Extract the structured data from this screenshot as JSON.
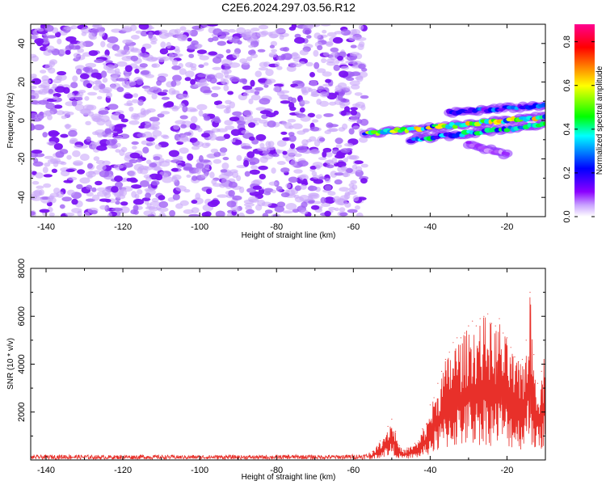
{
  "title": "C2E6.2024.297.03.56.R12",
  "chart_data": [
    {
      "type": "heatmap",
      "xlabel": "Height of straight line (km)",
      "ylabel": "Frequency (Hz)",
      "xlim": [
        -144,
        -10
      ],
      "ylim": [
        -50,
        50
      ],
      "x_ticks": [
        -140,
        -120,
        -100,
        -80,
        -60,
        -40,
        -20
      ],
      "y_ticks": [
        -40,
        -20,
        0,
        20,
        40
      ],
      "x_tick_labels": [
        "-140",
        "-120",
        "-100",
        "-80",
        "-60",
        "-40",
        "-20"
      ],
      "y_tick_labels": [
        "-40",
        "-20",
        "0",
        "20",
        "40"
      ],
      "colorbar": {
        "label": "Normalized spectral amplitude",
        "range": [
          0.0,
          0.88
        ],
        "ticks": [
          0.0,
          0.2,
          0.4,
          0.6,
          0.8
        ],
        "tick_labels": [
          "0.0",
          "0.2",
          "0.4",
          "0.6",
          "0.8"
        ],
        "colormap": [
          "#ffffff",
          "#8b00ff",
          "#0000ff",
          "#00ffff",
          "#00ff00",
          "#ffff00",
          "#ff8000",
          "#ff0000",
          "#ff00a0"
        ]
      },
      "background_region": {
        "x_range": [
          -144,
          -57
        ],
        "y_range": [
          -50,
          50
        ],
        "typical_amplitude": [
          0.02,
          0.12
        ]
      },
      "signal_tracks": [
        {
          "x_start": -57,
          "x_end": -10,
          "freq_start": -7,
          "freq_end": 2,
          "peak_amplitude": 0.62
        },
        {
          "x_start": -45,
          "x_end": -10,
          "freq_start": -10,
          "freq_end": -2,
          "peak_amplitude": 0.45
        },
        {
          "x_start": -35,
          "x_end": -10,
          "freq_start": 4,
          "freq_end": 8,
          "peak_amplitude": 0.3
        },
        {
          "x_start": -30,
          "x_end": -20,
          "freq_start": -12,
          "freq_end": -18,
          "peak_amplitude": 0.1
        }
      ]
    },
    {
      "type": "line",
      "xlabel": "Height of straight line (km)",
      "ylabel": "SNR (10 * v/v)",
      "xlim": [
        -144,
        -10
      ],
      "ylim": [
        0,
        8000
      ],
      "x_ticks": [
        -140,
        -120,
        -100,
        -80,
        -60,
        -40,
        -20
      ],
      "y_ticks": [
        2000,
        4000,
        6000,
        8000
      ],
      "x_tick_labels": [
        "-140",
        "-120",
        "-100",
        "-80",
        "-60",
        "-40",
        "-20"
      ],
      "y_tick_labels": [
        "2000",
        "4000",
        "6000",
        "8000"
      ],
      "line_color": "#e8302a",
      "series": [
        {
          "x": [
            -144,
            -135,
            -125,
            -115,
            -105,
            -95,
            -85,
            -75,
            -65,
            -57,
            -55,
            -53,
            -51,
            -50,
            -49,
            -48,
            -47,
            -46,
            -44,
            -43,
            -42,
            -41,
            -40,
            -39,
            -38,
            -37,
            -36,
            -35,
            -34,
            -33,
            -32,
            -31,
            -30,
            -29,
            -28,
            -27,
            -26,
            -25,
            -24,
            -23,
            -22,
            -21,
            -20,
            -19,
            -18,
            -17,
            -16,
            -15,
            -14,
            -13,
            -12,
            -11,
            -10
          ],
          "y": [
            150,
            180,
            150,
            170,
            150,
            160,
            150,
            170,
            160,
            200,
            350,
            800,
            1400,
            1700,
            1200,
            600,
            400,
            500,
            700,
            800,
            1300,
            1500,
            2300,
            2600,
            3200,
            3700,
            4200,
            4500,
            4900,
            5100,
            5100,
            5300,
            5600,
            5800,
            5600,
            5900,
            6000,
            6100,
            5700,
            5600,
            5900,
            5300,
            5100,
            4700,
            4300,
            4100,
            4200,
            5000,
            7000,
            4400,
            3200,
            3700,
            4800
          ]
        }
      ]
    }
  ]
}
